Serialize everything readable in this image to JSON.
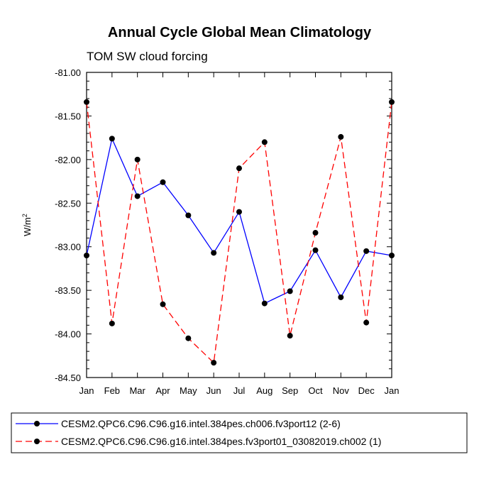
{
  "chart_data": {
    "type": "line",
    "title": "Annual Cycle Global Mean Climatology",
    "subtitle": "TOM SW cloud forcing",
    "xlabel": "",
    "ylabel": "W/m",
    "ylabel_superscript": "2",
    "categories": [
      "Jan",
      "Feb",
      "Mar",
      "Apr",
      "May",
      "Jun",
      "Jul",
      "Aug",
      "Sep",
      "Oct",
      "Nov",
      "Dec",
      "Jan"
    ],
    "ylim": [
      -84.5,
      -81.0
    ],
    "yticks": [
      -81.0,
      -81.5,
      -82.0,
      -82.5,
      -83.0,
      -83.5,
      -84.0,
      -84.5
    ],
    "ytick_labels": [
      "-81.00",
      "-81.50",
      "-82.00",
      "-82.50",
      "-83.00",
      "-83.50",
      "-84.00",
      "-84.50"
    ],
    "legend_position": "bottom",
    "series": [
      {
        "name": "CESM2.QPC6.C96.C96.g16.intel.384pes.ch006.fv3port12 (2-6)",
        "color": "#0000ff",
        "dash": "solid",
        "values": [
          -83.1,
          -81.76,
          -82.42,
          -82.26,
          -82.64,
          -83.07,
          -82.6,
          -83.65,
          -83.51,
          -83.04,
          -83.58,
          -83.05,
          -83.1
        ]
      },
      {
        "name": "CESM2.QPC6.C96.C96.g16.intel.384pes.fv3port01_03082019.ch002 (1)",
        "color": "#ff0000",
        "dash": "dashed",
        "values": [
          -81.34,
          -83.88,
          -82.0,
          -83.66,
          -84.05,
          -84.33,
          -82.1,
          -81.8,
          -84.02,
          -82.84,
          -81.74,
          -83.87,
          -81.34
        ]
      }
    ]
  }
}
